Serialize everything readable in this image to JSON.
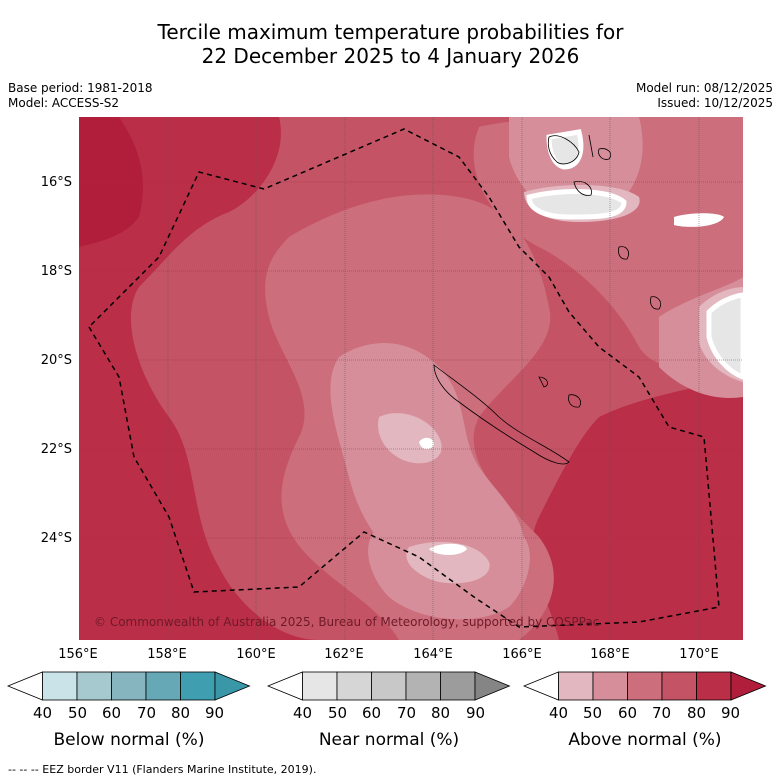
{
  "title_line1": "Tercile maximum temperature probabilities for",
  "title_line2": "22 December 2025 to 4 January 2026",
  "base_period": "Base period: 1981-2018",
  "model": "Model: ACCESS-S2",
  "model_run": "Model run: 08/12/2025",
  "issued": "Issued: 10/12/2025",
  "copyright": "© Commonwealth of Australia 2025, Bureau of Meteorology, supported by COSPPac",
  "lat_labels": [
    "16°S",
    "18°S",
    "20°S",
    "22°S",
    "24°S"
  ],
  "lon_labels": [
    "156°E",
    "158°E",
    "160°E",
    "162°E",
    "164°E",
    "166°E",
    "168°E",
    "170°E"
  ],
  "colorbars": [
    {
      "label": "Below normal (%)",
      "ticks": [
        "40",
        "50",
        "60",
        "70",
        "80",
        "90"
      ],
      "colors": [
        "#ffffff",
        "#c9e3e8",
        "#a6c9cf",
        "#86b5c0",
        "#66a8b6",
        "#3f9eb0",
        "#3a97a8"
      ]
    },
    {
      "label": "Near normal (%)",
      "ticks": [
        "40",
        "50",
        "60",
        "70",
        "80",
        "90"
      ],
      "colors": [
        "#ffffff",
        "#e6e6e6",
        "#d6d6d6",
        "#c8c8c8",
        "#b3b3b3",
        "#9c9c9c",
        "#858585"
      ]
    },
    {
      "label": "Above normal (%)",
      "ticks": [
        "40",
        "50",
        "60",
        "70",
        "80",
        "90"
      ],
      "colors": [
        "#ffffff",
        "#e3b7bf",
        "#d68f9a",
        "#cc6e7c",
        "#c45465",
        "#ba2e48",
        "#b01e3c"
      ]
    }
  ],
  "footer": "--  --  -- EEZ border V11 (Flanders Marine Institute, 2019).",
  "map_colors": {
    "c90": "#b01e3c",
    "c80": "#ba2e48",
    "c70": "#c45465",
    "c60": "#cc6e7c",
    "c50": "#d68f9a",
    "c40": "#e3b7bf",
    "white": "#ffffff",
    "grey": "#e6e6e6"
  }
}
